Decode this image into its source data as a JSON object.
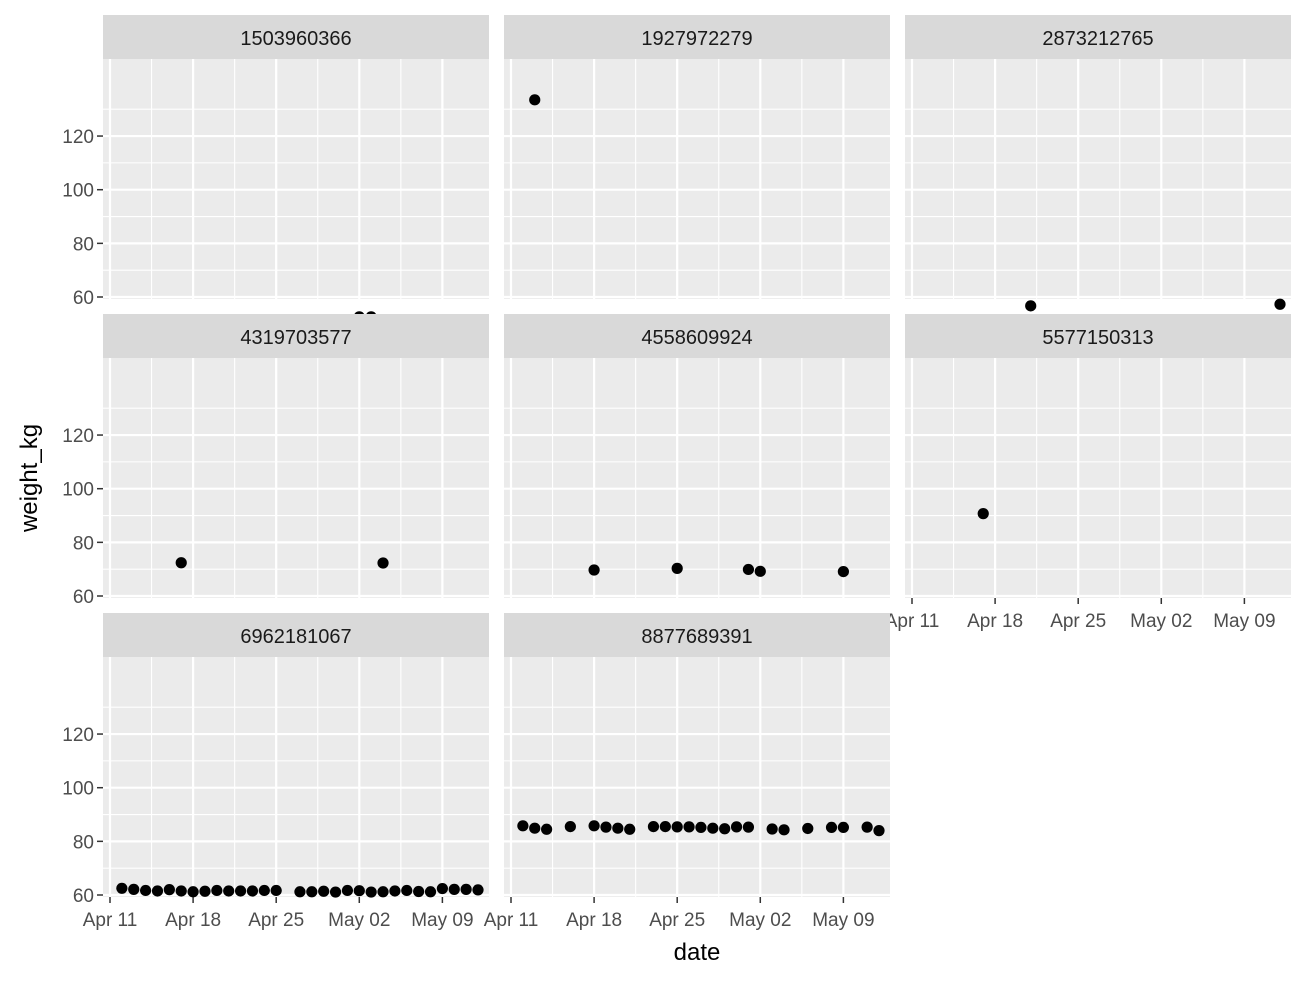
{
  "chart_data": {
    "type": "scatter",
    "facet_layout": "wrap 3 columns",
    "xlabel": "date",
    "ylabel": "weight_kg",
    "x_ticks": [
      "Apr 11",
      "Apr 18",
      "Apr 25",
      "May 02",
      "May 09"
    ],
    "y_ticks": [
      60,
      80,
      100,
      120
    ],
    "xlim": [
      "2016-04-11",
      "2016-05-12"
    ],
    "ylim": [
      48,
      138
    ],
    "grid": true,
    "colors": {
      "panel": "#ebebeb",
      "strip": "#d9d9d9",
      "grid": "#ffffff",
      "point": "#000000",
      "tick": "#333333"
    },
    "panels": [
      {
        "id": "1503960366",
        "points": [
          [
            "2016-05-02",
            52.6
          ],
          [
            "2016-05-03",
            52.6
          ]
        ]
      },
      {
        "id": "1927972279",
        "points": [
          [
            "2016-04-13",
            133.5
          ]
        ]
      },
      {
        "id": "2873212765",
        "points": [
          [
            "2016-04-21",
            56.7
          ],
          [
            "2016-05-12",
            57.3
          ]
        ]
      },
      {
        "id": "4319703577",
        "points": [
          [
            "2016-04-17",
            72.4
          ],
          [
            "2016-05-04",
            72.3
          ]
        ]
      },
      {
        "id": "4558609924",
        "points": [
          [
            "2016-04-18",
            69.7
          ],
          [
            "2016-04-25",
            70.3
          ],
          [
            "2016-05-01",
            69.9
          ],
          [
            "2016-05-02",
            69.2
          ],
          [
            "2016-05-09",
            69.1
          ]
        ]
      },
      {
        "id": "5577150313",
        "points": [
          [
            "2016-04-17",
            90.7
          ]
        ]
      },
      {
        "id": "6962181067",
        "points": [
          [
            "2016-04-12",
            62.5
          ],
          [
            "2016-04-13",
            62.1
          ],
          [
            "2016-04-14",
            61.7
          ],
          [
            "2016-04-15",
            61.5
          ],
          [
            "2016-04-16",
            62.0
          ],
          [
            "2016-04-17",
            61.5
          ],
          [
            "2016-04-18",
            61.2
          ],
          [
            "2016-04-19",
            61.4
          ],
          [
            "2016-04-20",
            61.7
          ],
          [
            "2016-04-21",
            61.5
          ],
          [
            "2016-04-22",
            61.5
          ],
          [
            "2016-04-23",
            61.5
          ],
          [
            "2016-04-24",
            61.7
          ],
          [
            "2016-04-25",
            61.7
          ],
          [
            "2016-04-27",
            61.2
          ],
          [
            "2016-04-28",
            61.2
          ],
          [
            "2016-04-29",
            61.4
          ],
          [
            "2016-04-30",
            61.1
          ],
          [
            "2016-05-01",
            61.7
          ],
          [
            "2016-05-02",
            61.6
          ],
          [
            "2016-05-03",
            61.1
          ],
          [
            "2016-05-04",
            61.2
          ],
          [
            "2016-05-05",
            61.5
          ],
          [
            "2016-05-06",
            61.7
          ],
          [
            "2016-05-07",
            61.3
          ],
          [
            "2016-05-08",
            61.2
          ],
          [
            "2016-05-09",
            62.4
          ],
          [
            "2016-05-10",
            62.1
          ],
          [
            "2016-05-11",
            62.1
          ],
          [
            "2016-05-12",
            61.9
          ]
        ]
      },
      {
        "id": "8877689391",
        "points": [
          [
            "2016-04-12",
            85.8
          ],
          [
            "2016-04-13",
            84.9
          ],
          [
            "2016-04-14",
            84.5
          ],
          [
            "2016-04-16",
            85.5
          ],
          [
            "2016-04-18",
            85.8
          ],
          [
            "2016-04-19",
            85.3
          ],
          [
            "2016-04-20",
            84.9
          ],
          [
            "2016-04-21",
            84.5
          ],
          [
            "2016-04-23",
            85.5
          ],
          [
            "2016-04-24",
            85.5
          ],
          [
            "2016-04-25",
            85.4
          ],
          [
            "2016-04-26",
            85.4
          ],
          [
            "2016-04-27",
            85.2
          ],
          [
            "2016-04-28",
            84.9
          ],
          [
            "2016-04-29",
            84.7
          ],
          [
            "2016-04-30",
            85.4
          ],
          [
            "2016-05-01",
            85.3
          ],
          [
            "2016-05-03",
            84.6
          ],
          [
            "2016-05-04",
            84.3
          ],
          [
            "2016-05-06",
            84.8
          ],
          [
            "2016-05-08",
            85.2
          ],
          [
            "2016-05-09",
            85.2
          ],
          [
            "2016-05-11",
            85.3
          ],
          [
            "2016-05-12",
            84.0
          ]
        ]
      }
    ]
  }
}
